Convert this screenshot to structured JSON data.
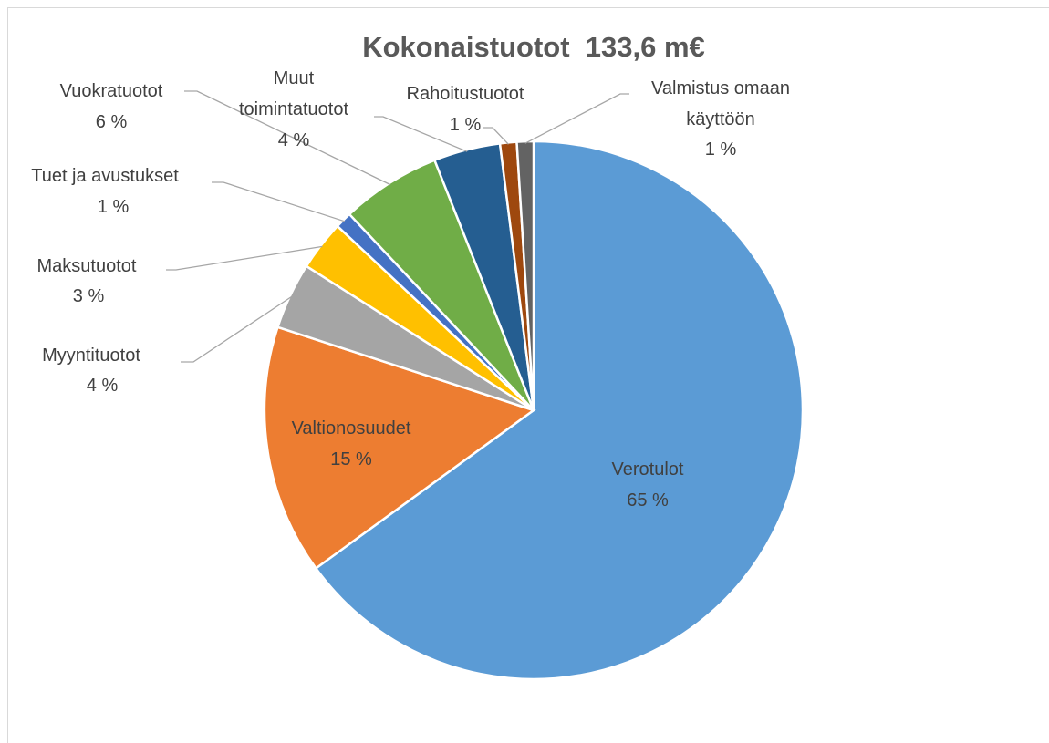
{
  "chart_data": {
    "type": "pie",
    "title": "Kokonaistuotot  133,6 m€",
    "categories": [
      "Verotulot",
      "Valtionosuudet",
      "Myyntituotot",
      "Maksutuotot",
      "Tuet ja avustukset",
      "Vuokratuotot",
      "Muut toimintatuotot",
      "Rahoitustuotot",
      "Valmistus omaan käyttöön"
    ],
    "values": [
      65,
      15,
      4,
      3,
      1,
      6,
      4,
      1,
      1
    ],
    "value_labels": [
      "65 %",
      "15 %",
      "4 %",
      "3 %",
      "1 %",
      "6 %",
      "4 %",
      "1 %",
      "1 %"
    ],
    "colors": [
      "#5b9bd5",
      "#ed7d31",
      "#a5a5a5",
      "#ffc000",
      "#4472c4",
      "#70ad47",
      "#255e91",
      "#9e480e",
      "#636363"
    ]
  }
}
